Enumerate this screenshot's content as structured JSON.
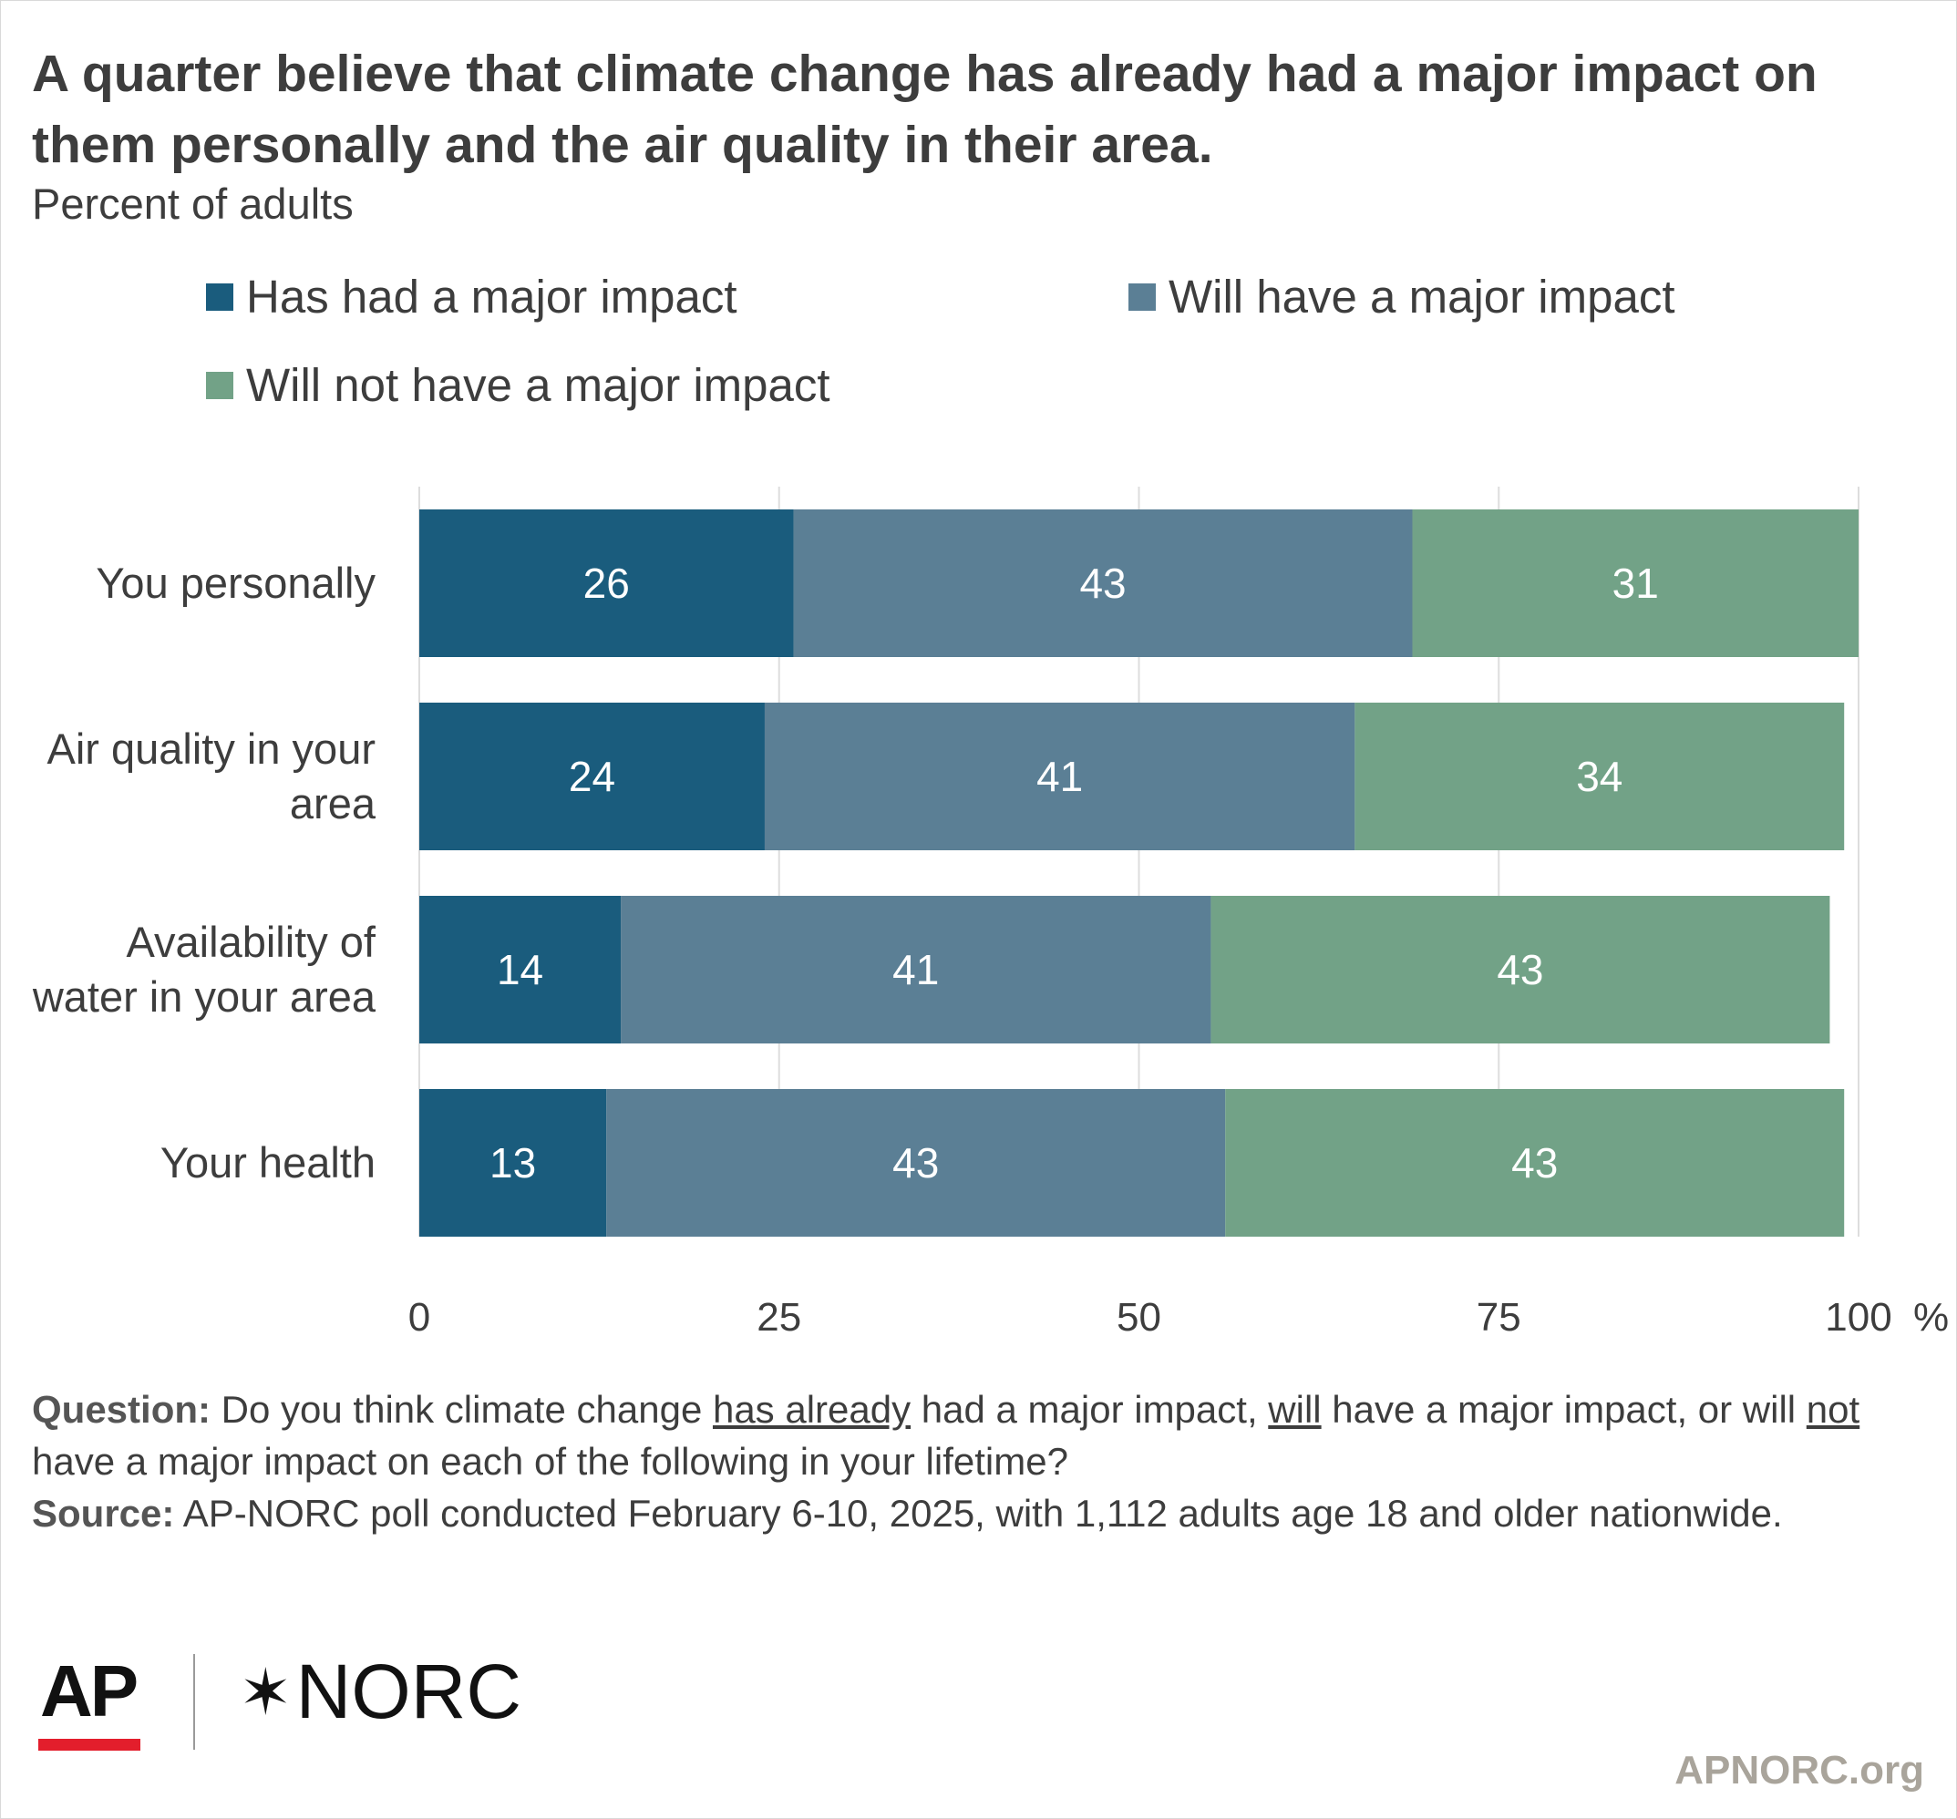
{
  "title": "A quarter believe that climate change has already had a major impact on them personally and the air quality in their area.",
  "subtitle": "Percent of adults",
  "colors": {
    "has_had": "#1a5c7d",
    "will_have": "#5b7f95",
    "will_not": "#72a287",
    "grid": "#dddddd",
    "label_text": "#ffffff"
  },
  "chart_data": {
    "type": "bar",
    "orientation": "horizontal",
    "stacked": true,
    "categories": [
      [
        "You personally"
      ],
      [
        "Air quality in your",
        "area"
      ],
      [
        "Availability of",
        "water in your area"
      ],
      [
        "Your health"
      ]
    ],
    "series": [
      {
        "name": "Has had a major impact",
        "values": [
          26,
          24,
          14,
          13
        ]
      },
      {
        "name": "Will have a major impact",
        "values": [
          43,
          41,
          41,
          43
        ]
      },
      {
        "name": "Will not have a major impact",
        "values": [
          31,
          34,
          43,
          43
        ]
      }
    ],
    "xlim": [
      0,
      100
    ],
    "xticks": [
      "0",
      "25",
      "50",
      "75",
      "100"
    ],
    "xtick_values": [
      0,
      25,
      50,
      75,
      100
    ],
    "x_unit": "%",
    "grid": true,
    "legend_position": "top"
  },
  "notes": {
    "question_label": "Question:",
    "question_parts": [
      "Do you think climate change ",
      "has already",
      " had a major impact, ",
      "will",
      " have a major impact, or will ",
      "not",
      " have a major impact on each of the following in your lifetime?"
    ],
    "source_label": "Source:",
    "source_text": "AP-NORC poll conducted February 6-10, 2025, with 1,112 adults age 18 and older nationwide."
  },
  "logos": {
    "ap": "AP",
    "norc_star": "✶",
    "norc": "NORC"
  },
  "site": "APNORC.org"
}
